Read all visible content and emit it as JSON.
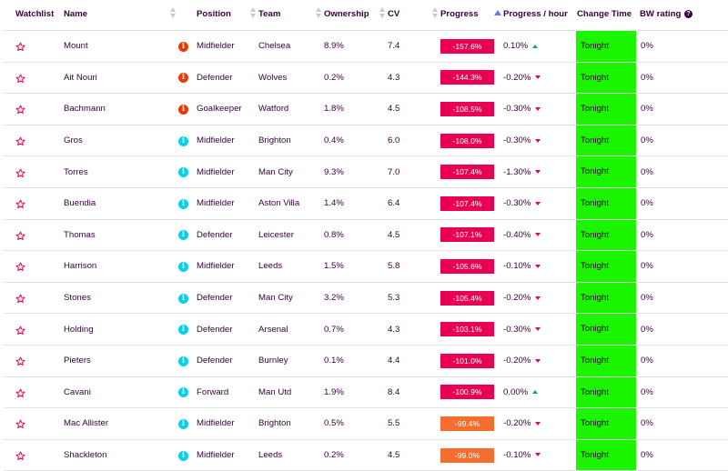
{
  "columns": {
    "watchlist": "Watchlist",
    "name": "Name",
    "position": "Position",
    "team": "Team",
    "ownership": "Ownership",
    "cv": "CV",
    "progress": "Progress",
    "progress_hour": "Progress / hour",
    "change_time": "Change Time",
    "bw_rating": "BW rating",
    "bw_help": "?"
  },
  "colors": {
    "progress_red": "#e90052",
    "progress_orange": "#f56e2f",
    "change_time_green": "#1bf500",
    "injury_icon": "#e93a05",
    "news_icon": "#06d1e8",
    "star": "#e90052"
  },
  "rows": [
    {
      "name": "Mount",
      "status": "injured",
      "status_glyph": "i",
      "position": "Midfielder",
      "team": "Chelsea",
      "ownership": "8.9%",
      "cv": "7.4",
      "progress": "-157.6%",
      "progress_level": "red",
      "rate": "0.10%",
      "rate_dir": "up",
      "change_time": "Tonight",
      "bw": "0%"
    },
    {
      "name": "Ait Nouri",
      "status": "injured",
      "status_glyph": "i",
      "position": "Defender",
      "team": "Wolves",
      "ownership": "0.2%",
      "cv": "4.3",
      "progress": "-144.3%",
      "progress_level": "red",
      "rate": "-0.20%",
      "rate_dir": "down",
      "change_time": "Tonight",
      "bw": "0%"
    },
    {
      "name": "Bachmann",
      "status": "injured",
      "status_glyph": "i",
      "position": "Goalkeeper",
      "team": "Watford",
      "ownership": "1.8%",
      "cv": "4.5",
      "progress": "-108.5%",
      "progress_level": "red",
      "rate": "-0.30%",
      "rate_dir": "down",
      "change_time": "Tonight",
      "bw": "0%"
    },
    {
      "name": "Gros",
      "status": "news",
      "status_glyph": "i",
      "position": "Midfielder",
      "team": "Brighton",
      "ownership": "0.4%",
      "cv": "6.0",
      "progress": "-108.0%",
      "progress_level": "red",
      "rate": "-0.30%",
      "rate_dir": "down",
      "change_time": "Tonight",
      "bw": "0%"
    },
    {
      "name": "Torres",
      "status": "news",
      "status_glyph": "i",
      "position": "Midfielder",
      "team": "Man City",
      "ownership": "9.3%",
      "cv": "7.0",
      "progress": "-107.4%",
      "progress_level": "red",
      "rate": "-1.30%",
      "rate_dir": "down",
      "change_time": "Tonight",
      "bw": "0%"
    },
    {
      "name": "Buendia",
      "status": "news",
      "status_glyph": "i",
      "position": "Midfielder",
      "team": "Aston Villa",
      "ownership": "1.4%",
      "cv": "6.4",
      "progress": "-107.4%",
      "progress_level": "red",
      "rate": "-0.30%",
      "rate_dir": "down",
      "change_time": "Tonight",
      "bw": "0%"
    },
    {
      "name": "Thomas",
      "status": "news",
      "status_glyph": "i",
      "position": "Defender",
      "team": "Leicester",
      "ownership": "0.8%",
      "cv": "4.5",
      "progress": "-107.1%",
      "progress_level": "red",
      "rate": "-0.40%",
      "rate_dir": "down",
      "change_time": "Tonight",
      "bw": "0%"
    },
    {
      "name": "Harrison",
      "status": "news",
      "status_glyph": "i",
      "position": "Midfielder",
      "team": "Leeds",
      "ownership": "1.5%",
      "cv": "5.8",
      "progress": "-105.6%",
      "progress_level": "red",
      "rate": "-0.10%",
      "rate_dir": "down",
      "change_time": "Tonight",
      "bw": "0%"
    },
    {
      "name": "Stones",
      "status": "news",
      "status_glyph": "i",
      "position": "Defender",
      "team": "Man City",
      "ownership": "3.2%",
      "cv": "5.3",
      "progress": "-105.4%",
      "progress_level": "red",
      "rate": "-0.20%",
      "rate_dir": "down",
      "change_time": "Tonight",
      "bw": "0%"
    },
    {
      "name": "Holding",
      "status": "news",
      "status_glyph": "i",
      "position": "Defender",
      "team": "Arsenal",
      "ownership": "0.7%",
      "cv": "4.3",
      "progress": "-103.1%",
      "progress_level": "red",
      "rate": "-0.30%",
      "rate_dir": "down",
      "change_time": "Tonight",
      "bw": "0%"
    },
    {
      "name": "Pieters",
      "status": "news",
      "status_glyph": "i",
      "position": "Defender",
      "team": "Burnley",
      "ownership": "0.1%",
      "cv": "4.4",
      "progress": "-101.0%",
      "progress_level": "red",
      "rate": "-0.20%",
      "rate_dir": "down",
      "change_time": "Tonight",
      "bw": "0%"
    },
    {
      "name": "Cavani",
      "status": "news",
      "status_glyph": "i",
      "position": "Forward",
      "team": "Man Utd",
      "ownership": "1.9%",
      "cv": "8.4",
      "progress": "-100.9%",
      "progress_level": "red",
      "rate": "0.00%",
      "rate_dir": "up",
      "change_time": "Tonight",
      "bw": "0%"
    },
    {
      "name": "Mac Allister",
      "status": "news",
      "status_glyph": "i",
      "position": "Midfielder",
      "team": "Brighton",
      "ownership": "0.5%",
      "cv": "5.5",
      "progress": "-99.4%",
      "progress_level": "orange",
      "rate": "-0.20%",
      "rate_dir": "down",
      "change_time": "Tonight",
      "bw": "0%"
    },
    {
      "name": "Shackleton",
      "status": "news",
      "status_glyph": "i",
      "position": "Midfielder",
      "team": "Leeds",
      "ownership": "0.2%",
      "cv": "4.5",
      "progress": "-99.0%",
      "progress_level": "orange",
      "rate": "-0.10%",
      "rate_dir": "down",
      "change_time": "Tonight",
      "bw": "0%"
    }
  ]
}
